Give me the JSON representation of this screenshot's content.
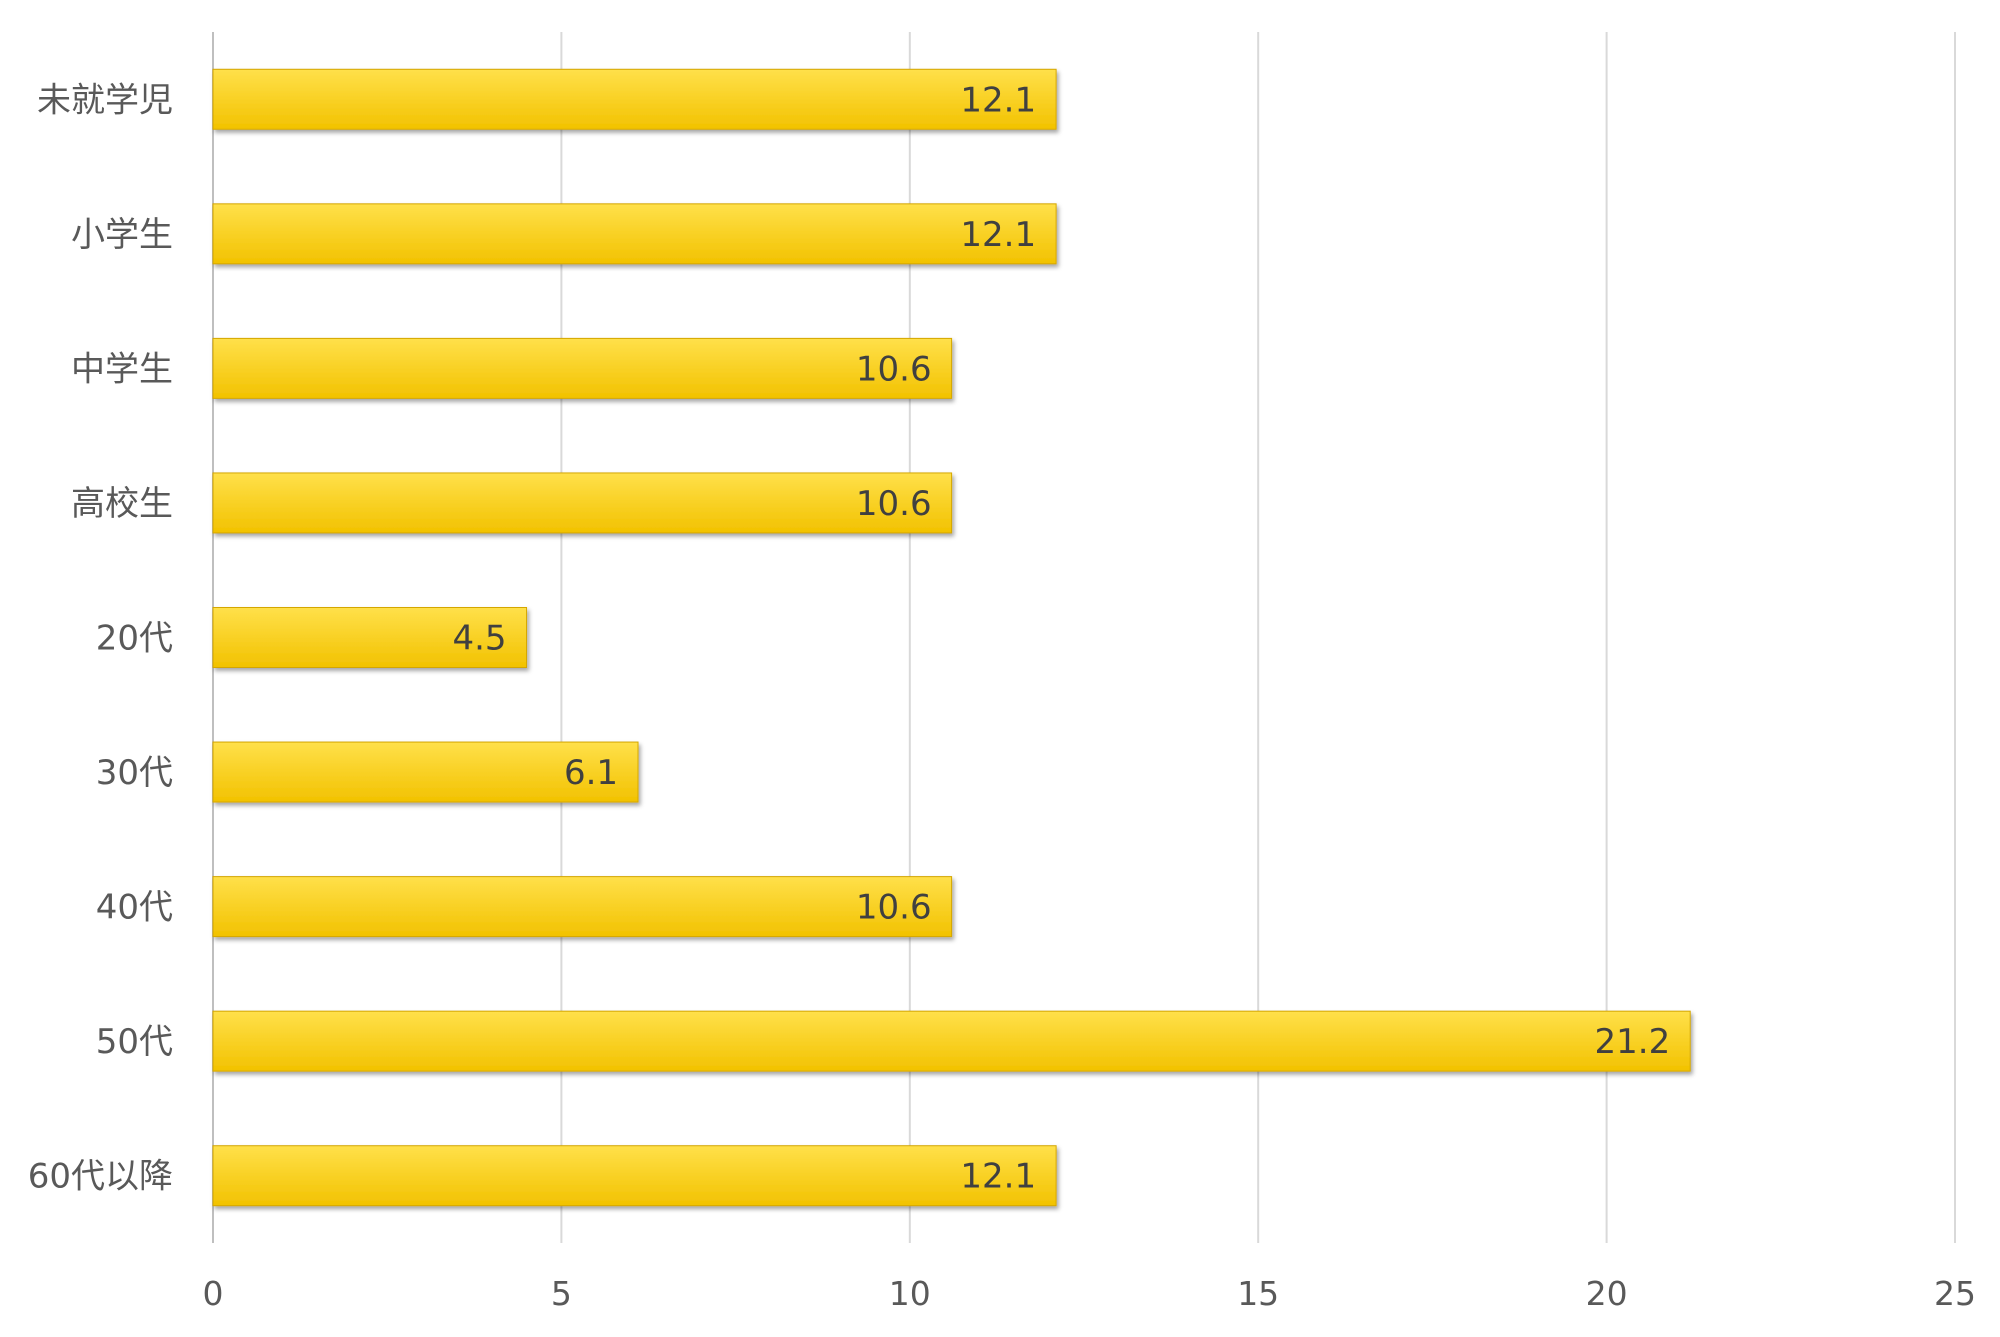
{
  "chart_data": {
    "type": "bar",
    "orientation": "horizontal",
    "categories": [
      "未就学児",
      "小学生",
      "中学生",
      "高校生",
      "20代",
      "30代",
      "40代",
      "50代",
      "60代以降"
    ],
    "values": [
      12.1,
      12.1,
      10.6,
      10.6,
      4.5,
      6.1,
      10.6,
      21.2,
      12.1
    ],
    "data_labels": [
      "12.1",
      "12.1",
      "10.6",
      "10.6",
      "4.5",
      "6.1",
      "10.6",
      "21.2",
      "12.1"
    ],
    "xlim": [
      0,
      25
    ],
    "x_ticks": [
      0,
      5,
      10,
      15,
      20,
      25
    ],
    "x_tick_labels": [
      "0",
      "5",
      "10",
      "15",
      "20",
      "25"
    ],
    "grid": "vertical",
    "legend": "none",
    "colors": {
      "bar_top": "#ffe04a",
      "bar_bottom": "#f2c200",
      "bar_edge": "#d4a600",
      "grid": "#d9d9d9",
      "text": "#595959"
    }
  }
}
